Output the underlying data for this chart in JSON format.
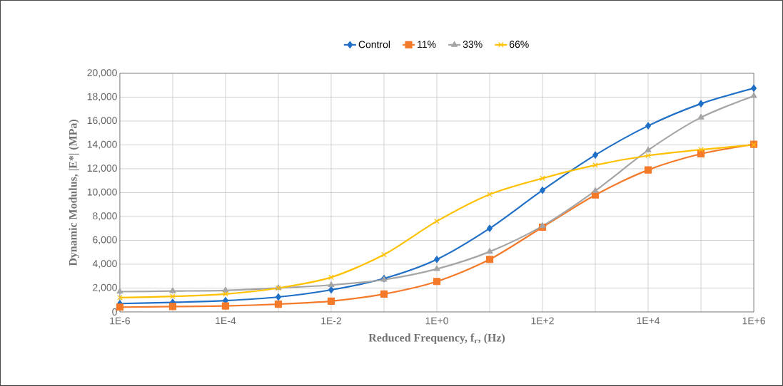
{
  "chart_data": {
    "type": "line",
    "xlabel": "Reduced Frequency, f$_{r}$, (Hz)",
    "ylabel": "Dynamic Modulus, |E*|  (MPa)",
    "x": [
      1e-06,
      1e-05,
      0.0001,
      0.001,
      0.01,
      0.1,
      1,
      10,
      100,
      1000,
      10000,
      100000,
      1000000
    ],
    "series": [
      {
        "name": "Control",
        "color": "#1f6fc6",
        "marker": "diamond",
        "values": [
          700,
          800,
          950,
          1250,
          1850,
          2800,
          4400,
          7000,
          10200,
          13150,
          15600,
          17450,
          18750
        ]
      },
      {
        "name": "11%",
        "color": "#f47a2a",
        "marker": "square",
        "values": [
          400,
          450,
          500,
          650,
          900,
          1500,
          2550,
          4400,
          7100,
          9800,
          11900,
          13250,
          14050
        ]
      },
      {
        "name": "33%",
        "color": "#a5a5a5",
        "marker": "triangle",
        "values": [
          1700,
          1750,
          1800,
          2000,
          2250,
          2700,
          3600,
          5050,
          7200,
          10150,
          13550,
          16300,
          18100
        ]
      },
      {
        "name": "66%",
        "color": "#ffc000",
        "marker": "cross",
        "values": [
          1200,
          1300,
          1500,
          2000,
          2900,
          4800,
          7600,
          9850,
          11200,
          12300,
          13100,
          13600,
          14000
        ]
      }
    ],
    "log": "x",
    "grid": true,
    "legend": "top",
    "line_style": "solid",
    "xlim": [
      1e-06,
      1000000
    ],
    "ylim": [
      0,
      20000
    ],
    "xticks": [
      {
        "value": 1e-06,
        "label": "1E-6"
      },
      {
        "value": 1e-05,
        "label": null
      },
      {
        "value": 0.0001,
        "label": "1E-4"
      },
      {
        "value": 0.001,
        "label": null
      },
      {
        "value": 0.01,
        "label": "1E-2"
      },
      {
        "value": 0.1,
        "label": null
      },
      {
        "value": 1,
        "label": "1E+0"
      },
      {
        "value": 10,
        "label": null
      },
      {
        "value": 100,
        "label": "1E+2"
      },
      {
        "value": 1000,
        "label": null
      },
      {
        "value": 10000,
        "label": "1E+4"
      },
      {
        "value": 100000,
        "label": null
      },
      {
        "value": 1000000,
        "label": "1E+6"
      }
    ],
    "yticks": [
      {
        "value": 0,
        "label": "0"
      },
      {
        "value": 2000,
        "label": "2,000"
      },
      {
        "value": 4000,
        "label": "4,000"
      },
      {
        "value": 6000,
        "label": "6,000"
      },
      {
        "value": 8000,
        "label": "8,000"
      },
      {
        "value": 10000,
        "label": "10,000"
      },
      {
        "value": 12000,
        "label": "12,000"
      },
      {
        "value": 14000,
        "label": "14,000"
      },
      {
        "value": 16000,
        "label": "16,000"
      },
      {
        "value": 18000,
        "label": "18,000"
      },
      {
        "value": 20000,
        "label": "20,000"
      }
    ]
  }
}
